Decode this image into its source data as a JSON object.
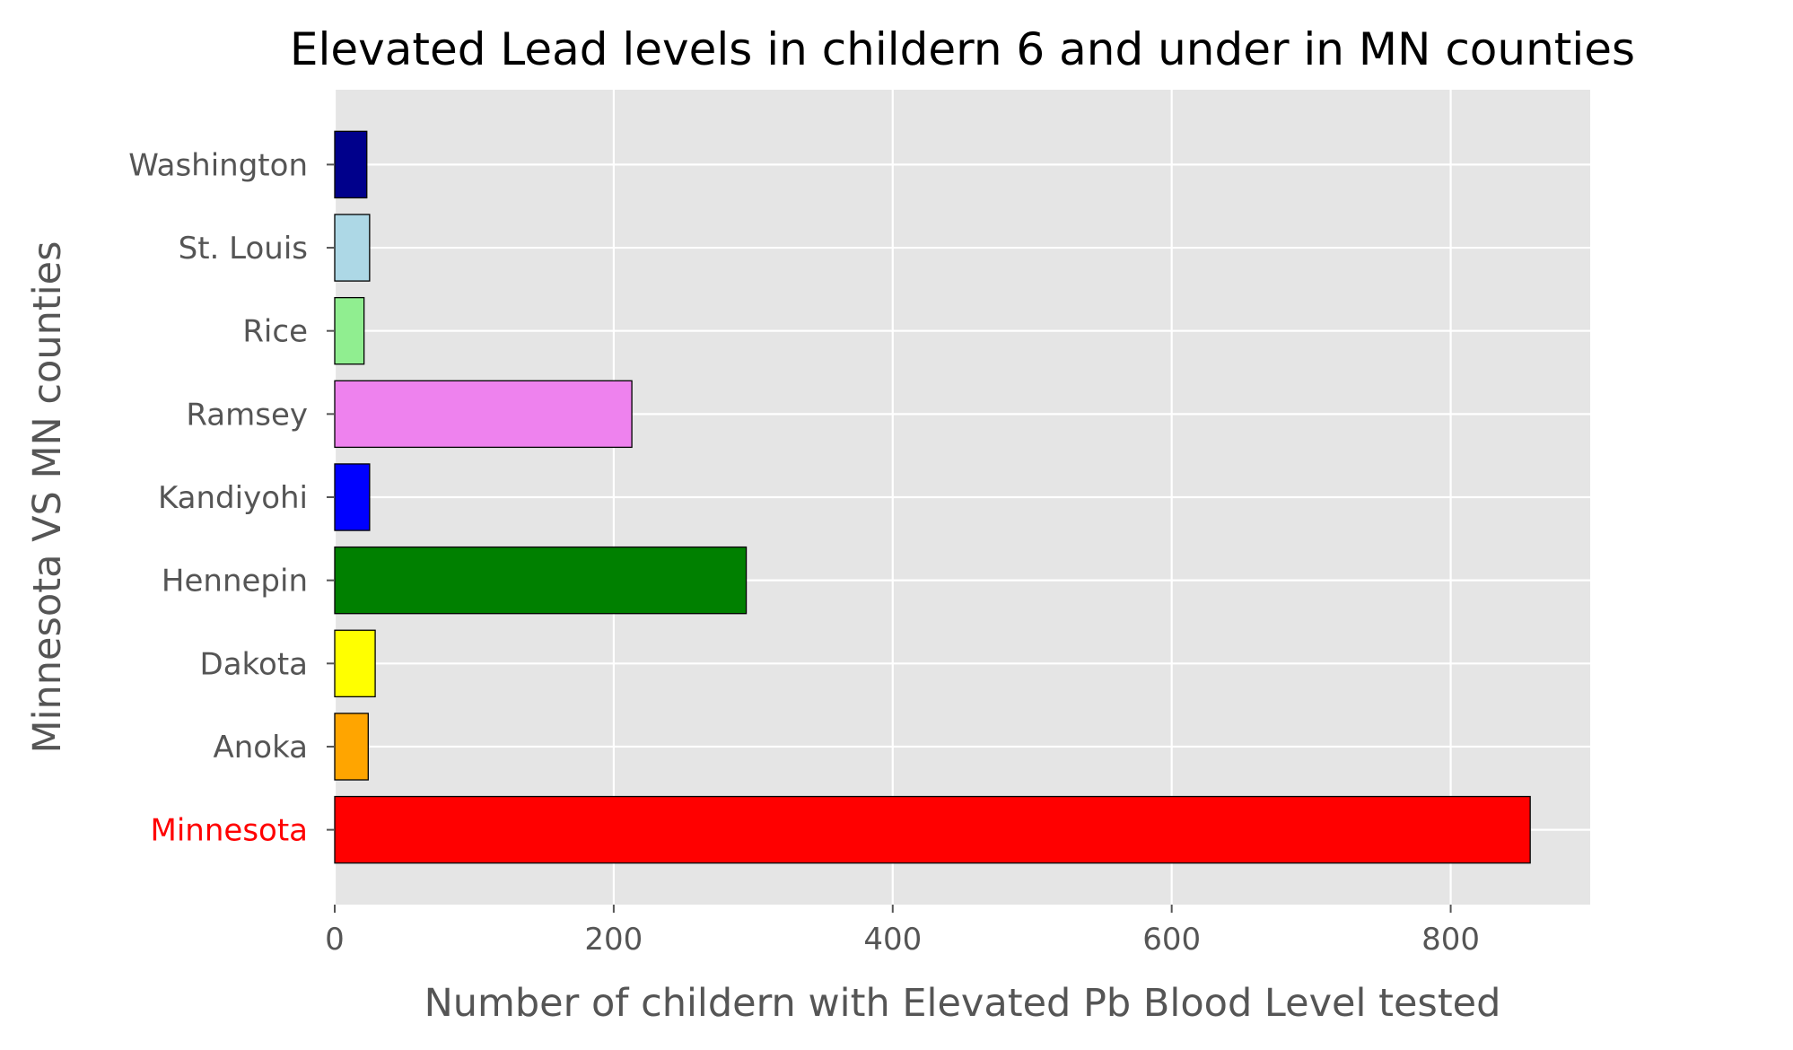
{
  "chart_data": {
    "type": "bar",
    "orientation": "horizontal",
    "title": "Elevated Lead levels in childern 6 and under in MN counties",
    "xlabel": "Number of childern with Elevated Pb Blood Level tested",
    "ylabel": "Minnesota VS MN counties",
    "categories": [
      "Minnesota",
      "Anoka",
      "Dakota",
      "Hennepin",
      "Kandiyohi",
      "Ramsey",
      "Rice",
      "St. Louis",
      "Washington"
    ],
    "values": [
      857,
      24,
      29,
      295,
      25,
      213,
      21,
      25,
      23
    ],
    "colors": [
      "#ff0000",
      "#ffa500",
      "#ffff00",
      "#008000",
      "#0000ff",
      "#ee82ee",
      "#90ee90",
      "#add8e6",
      "#00008b"
    ],
    "highlight_label_color": "#ff0000",
    "xlim": [
      0,
      900
    ],
    "xticks": [
      0,
      200,
      400,
      600,
      800
    ],
    "grid": true,
    "style": "ggplot",
    "background_color": "#e5e5e5"
  }
}
